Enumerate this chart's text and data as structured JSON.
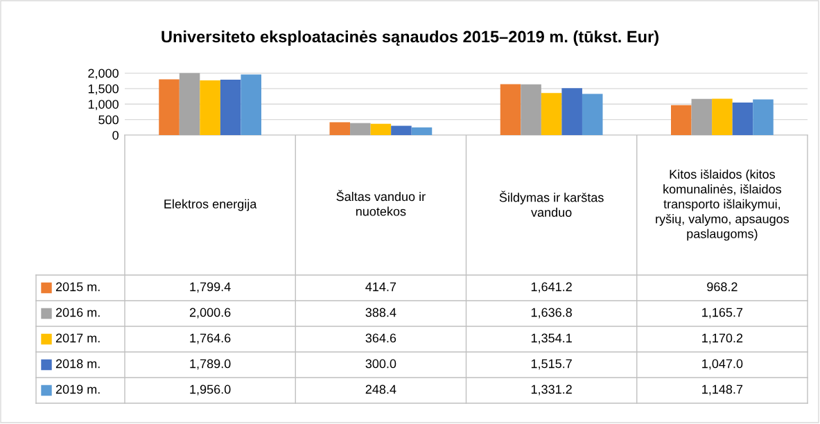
{
  "chart_data": {
    "type": "bar",
    "title": "Universiteto eksploatacinės sąnaudos 2015–2019 m. (tūkst. Eur)",
    "categories": [
      "Elektros energija",
      "Šaltas vanduo ir nuotekos",
      "Šildymas ir karštas vanduo",
      "Kitos išlaidos (kitos komunalinės, išlaidos transporto išlaikymui, ryšių, valymo, apsaugos paslaugoms)"
    ],
    "series": [
      {
        "name": "2015 m.",
        "color": "#ed7d31",
        "values": [
          1799.4,
          414.7,
          1641.2,
          968.2
        ],
        "value_labels": [
          "1,799.4",
          "414.7",
          "1,641.2",
          "968.2"
        ]
      },
      {
        "name": "2016 m.",
        "color": "#a5a5a5",
        "values": [
          2000.6,
          388.4,
          1636.8,
          1165.7
        ],
        "value_labels": [
          "2,000.6",
          "388.4",
          "1,636.8",
          "1,165.7"
        ]
      },
      {
        "name": "2017 m.",
        "color": "#ffc000",
        "values": [
          1764.6,
          364.6,
          1354.1,
          1170.2
        ],
        "value_labels": [
          "1,764.6",
          "364.6",
          "1,354.1",
          "1,170.2"
        ]
      },
      {
        "name": "2018 m.",
        "color": "#4472c4",
        "values": [
          1789.0,
          300.0,
          1515.7,
          1047.0
        ],
        "value_labels": [
          "1,789.0",
          "300.0",
          "1,515.7",
          "1,047.0"
        ]
      },
      {
        "name": "2019 m.",
        "color": "#5b9bd5",
        "values": [
          1956.0,
          248.4,
          1331.2,
          1148.7
        ],
        "value_labels": [
          "1,956.0",
          "248.4",
          "1,331.2",
          "1,148.7"
        ]
      }
    ],
    "ylim": [
      0,
      2010
    ],
    "legend": "left",
    "yticks": [
      0,
      500,
      {
        "value": 1000,
        "label": "1,000"
      },
      {
        "value": 1500,
        "label": "1,500"
      },
      {
        "value": 2000,
        "label": "2,000"
      }
    ],
    "grid": "y"
  }
}
